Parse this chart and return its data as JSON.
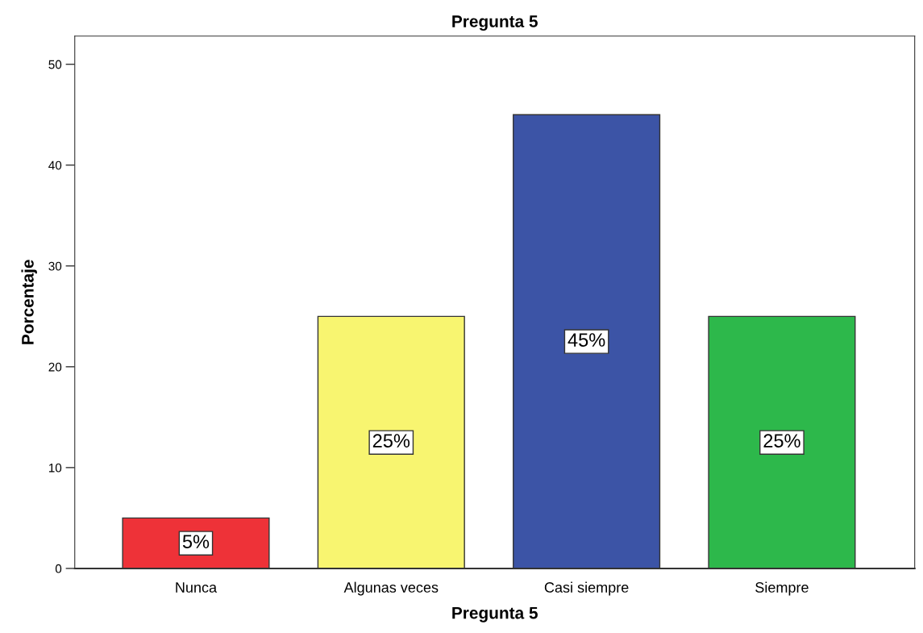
{
  "chart_data": {
    "type": "bar",
    "title": "Pregunta 5",
    "xlabel": "Pregunta 5",
    "ylabel": "Porcentaje",
    "categories": [
      "Nunca",
      "Algunas veces",
      "Casi siempre",
      "Siempre"
    ],
    "values": [
      5,
      25,
      45,
      25
    ],
    "colors": [
      "#ee3238",
      "#f8f570",
      "#3c54a6",
      "#2db84b"
    ],
    "value_labels": [
      "5%",
      "25%",
      "45%",
      "25%"
    ],
    "ylim": [
      0,
      52.8
    ],
    "yticks": [
      0,
      10,
      20,
      30,
      40,
      50
    ],
    "grid": false,
    "legend": false
  }
}
